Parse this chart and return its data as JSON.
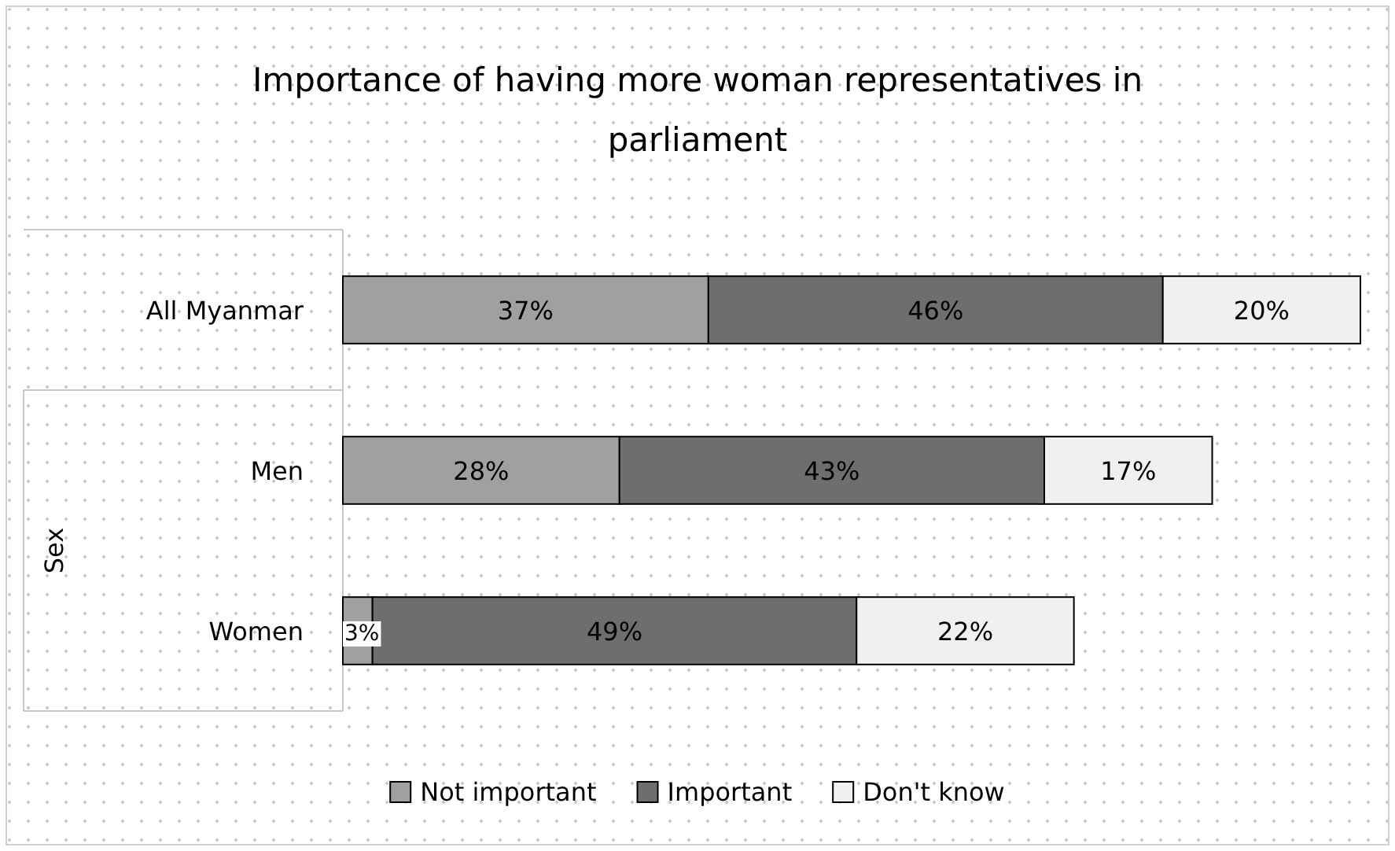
{
  "chart_data": {
    "type": "bar",
    "orientation": "horizontal",
    "stacked": true,
    "title": "Importance of having more woman representatives in parliament",
    "ylabel": "Sex",
    "categories": [
      "All Myanmar",
      "Men",
      "Women"
    ],
    "series": [
      {
        "name": "Not important",
        "color": "#a0a0a0",
        "values": [
          37,
          28,
          3
        ],
        "value_labels": [
          "37%",
          "28%",
          "3%"
        ]
      },
      {
        "name": "Important",
        "color": "#6e6e6e",
        "values": [
          46,
          43,
          49
        ],
        "value_labels": [
          "46%",
          "43%",
          "49%"
        ]
      },
      {
        "name": "Don't know",
        "color": "#f0f0f0",
        "values": [
          20,
          17,
          22
        ],
        "value_labels": [
          "20%",
          "17%",
          "22%"
        ]
      }
    ],
    "legend": "bottom"
  }
}
